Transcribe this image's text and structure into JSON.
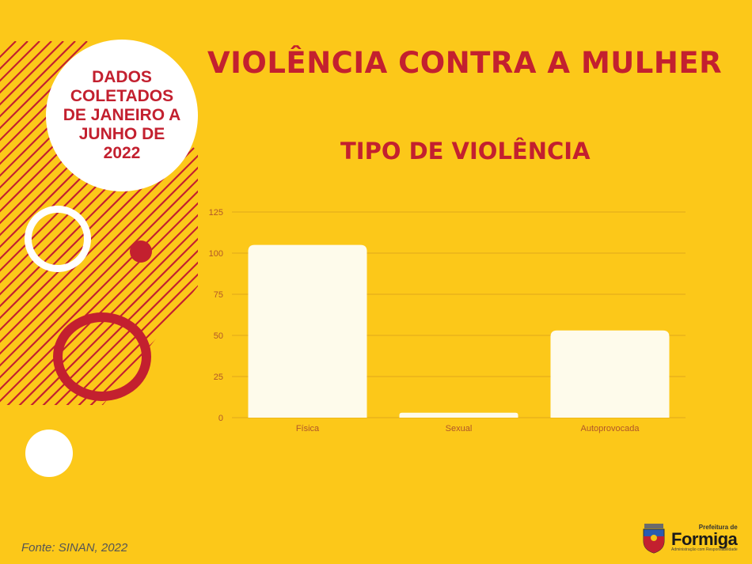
{
  "page": {
    "title": "VIOLÊNCIA CONTRA A MULHER",
    "badge_text": "DADOS COLETADOS DE JANEIRO A JUNHO DE 2022",
    "source": "Fonte: SINAN, 2022",
    "logo": {
      "small_text": "Prefeitura de",
      "big_text": "Formiga",
      "tagline": "Administração com Responsabilidade"
    }
  },
  "colors": {
    "background": "#fcc819",
    "accent": "#c3202f",
    "bar": "#fefbeb",
    "gridline": "#e0a71a",
    "tick_label": "#b0562a"
  },
  "chart_data": {
    "type": "bar",
    "title": "TIPO DE VIOLÊNCIA",
    "categories": [
      "Física",
      "Sexual",
      "Autoprovocada"
    ],
    "values": [
      105,
      3,
      53
    ],
    "xlabel": "",
    "ylabel": "",
    "ylim": [
      0,
      125
    ],
    "yticks": [
      0,
      25,
      50,
      75,
      100,
      125
    ],
    "grid": true,
    "legend": "none"
  }
}
